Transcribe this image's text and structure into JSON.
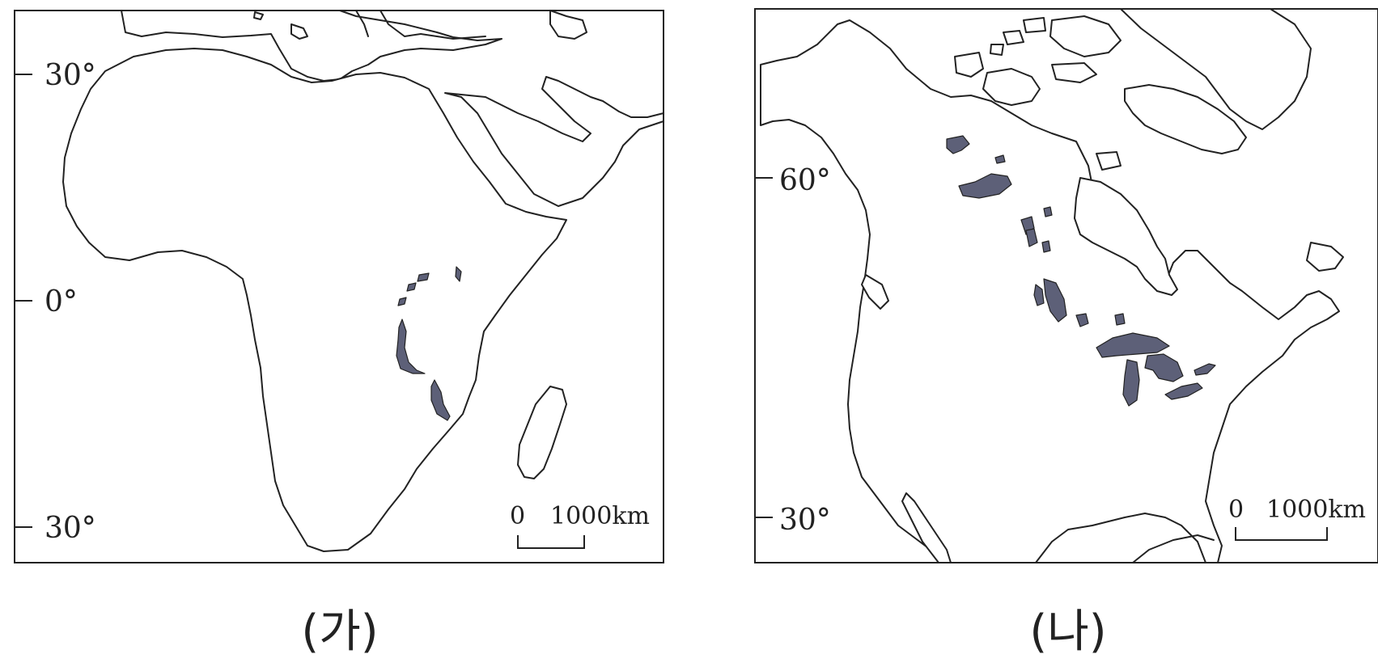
{
  "panel_a": {
    "caption": "(가)",
    "latitudes": [
      "30°",
      "0°",
      "30°"
    ],
    "scale": {
      "zero": "0",
      "distance": "1000km"
    }
  },
  "panel_b": {
    "caption": "(나)",
    "latitudes": [
      "60°",
      "30°"
    ],
    "scale": {
      "zero": "0",
      "distance": "1000km"
    }
  },
  "colors": {
    "highlight_lakes": "#5d6078",
    "line": "#222222",
    "background": "#ffffff"
  }
}
